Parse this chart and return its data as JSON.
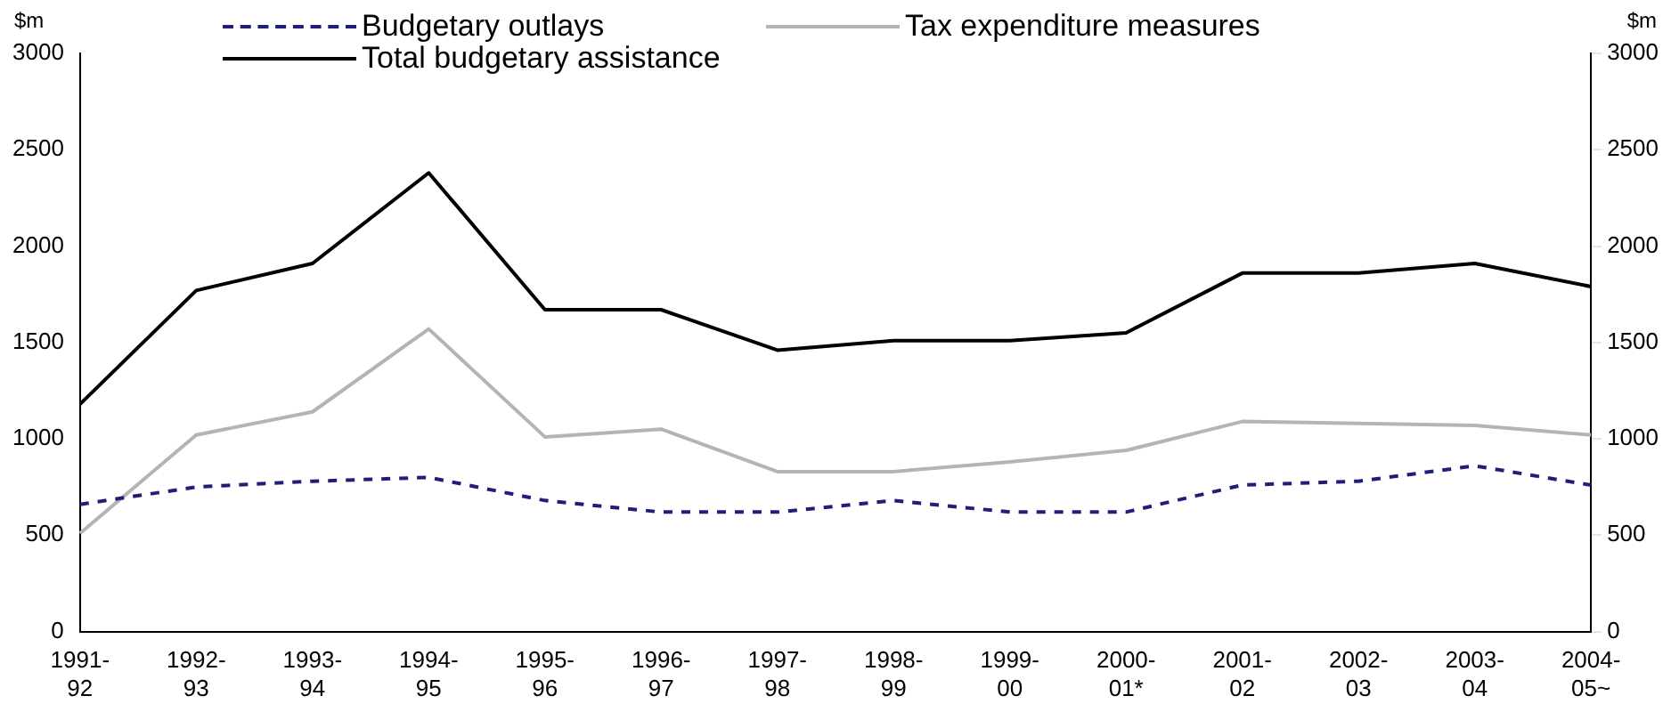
{
  "chart_data": {
    "type": "line",
    "ylabel": "$m",
    "y2label": "$m",
    "categories": [
      "1991-92",
      "1992-93",
      "1993-94",
      "1994-95",
      "1995-96",
      "1996-97",
      "1997-98",
      "1998-99",
      "1999-00",
      "2000-01*",
      "2001-02",
      "2002-03",
      "2003-04",
      "2004-05~"
    ],
    "series": [
      {
        "name": "Budgetary outlays",
        "color": "#1f1f7a",
        "line_style": "dashed",
        "values": [
          660,
          750,
          780,
          800,
          680,
          620,
          620,
          680,
          620,
          620,
          760,
          780,
          860,
          760
        ]
      },
      {
        "name": "Tax expenditure measures",
        "color": "#b4b4b4",
        "line_style": "solid",
        "values": [
          510,
          1020,
          1140,
          1570,
          1010,
          1050,
          830,
          830,
          880,
          940,
          1090,
          1080,
          1070,
          1020
        ]
      },
      {
        "name": "Total budgetary assistance",
        "color": "#000000",
        "line_style": "solid",
        "values": [
          1180,
          1770,
          1910,
          2380,
          1670,
          1670,
          1460,
          1510,
          1510,
          1550,
          1860,
          1860,
          1910,
          1790
        ]
      }
    ],
    "ylim": [
      0,
      3000
    ],
    "yticks": [
      0,
      500,
      1000,
      1500,
      2000,
      2500,
      3000
    ],
    "y2lim": [
      0,
      3000
    ],
    "y2ticks": [
      0,
      500,
      1000,
      1500,
      2000,
      2500,
      3000
    ],
    "grid": false,
    "legend": "top",
    "marker": "none"
  }
}
